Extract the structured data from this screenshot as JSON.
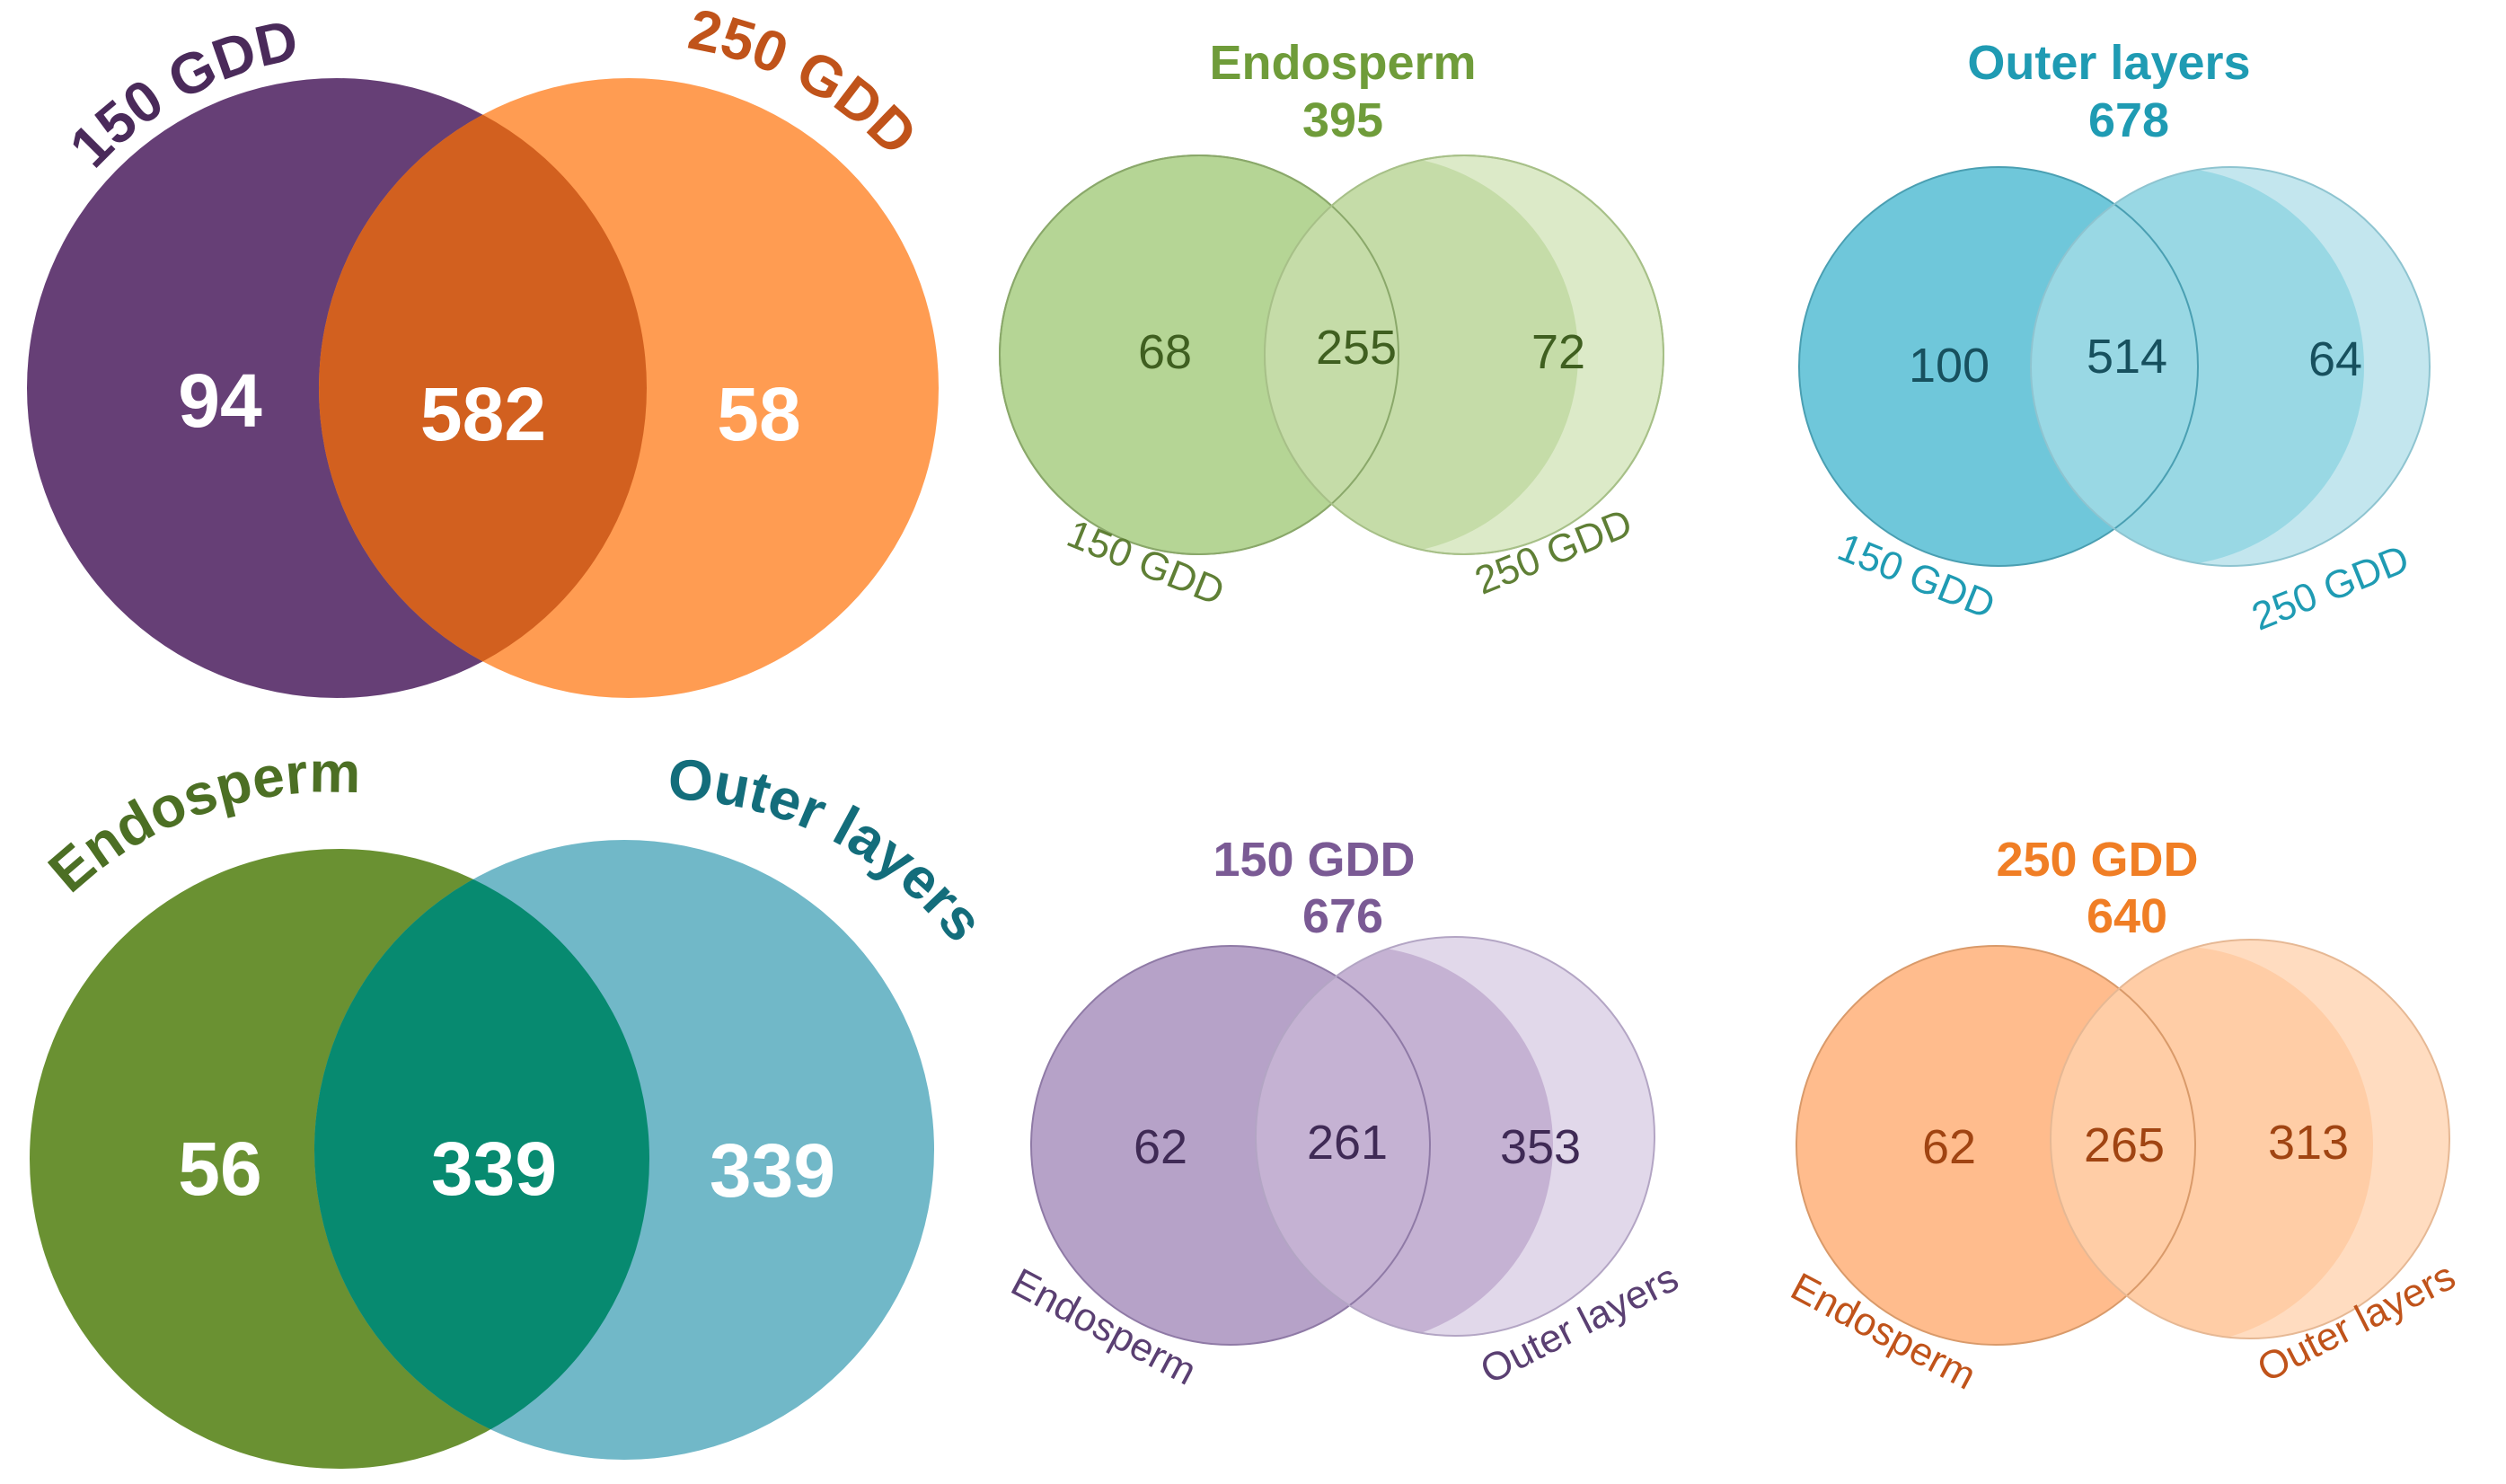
{
  "figure": {
    "panels": [
      {
        "id": "overall-gdd",
        "labels": [
          "150 GDD",
          "250 GDD"
        ],
        "counts": {
          "left_only": "94",
          "shared": "582",
          "right_only": "58"
        },
        "colors": {
          "left": "#663f76",
          "right": "#ff9c52",
          "overlap": "#d2601f",
          "label_left": "#4a2a5a",
          "label_right": "#c0531a",
          "numbers": "#ffffff"
        }
      },
      {
        "id": "endosperm",
        "title": "Endosperm",
        "total": "395",
        "labels": [
          "150 GDD",
          "250 GDD"
        ],
        "counts": {
          "left_only": "68",
          "shared": "255",
          "right_only": "72"
        },
        "colors": {
          "left": "#b5d595",
          "right": "#dceac8",
          "overlap": "#c5dca8",
          "title": "#6f9c3a",
          "labels": "#5f7f35",
          "numbers": "#3f5f20"
        }
      },
      {
        "id": "outer-layers",
        "title": "Outer layers",
        "total": "678",
        "labels": [
          "150 GDD",
          "250 GDD"
        ],
        "counts": {
          "left_only": "100",
          "shared": "514",
          "right_only": "64"
        },
        "colors": {
          "left": "#6fc7da",
          "right": "#c3e6ee",
          "overlap": "#99d8e4",
          "title": "#1f9bb3",
          "labels": "#1f9bb3",
          "numbers": "#17505e"
        }
      },
      {
        "id": "overall-tissue",
        "labels": [
          "Endosperm",
          "Outer layers"
        ],
        "counts": {
          "left_only": "56",
          "shared": "339",
          "right_only": "339"
        },
        "colors": {
          "left": "#6a9132",
          "right": "#71b8c8",
          "overlap": "#078a70",
          "label_left": "#4c6f24",
          "label_right": "#136d7b",
          "numbers": "#ffffff"
        }
      },
      {
        "id": "gdd150",
        "title": "150 GDD",
        "total": "676",
        "labels": [
          "Endosperm",
          "Outer layers"
        ],
        "counts": {
          "left_only": "62",
          "shared": "261",
          "right_only": "353"
        },
        "colors": {
          "left": "#b6a2c8",
          "right": "#e1d8ea",
          "overlap": "#c5b2d3",
          "title": "#7a5a94",
          "labels": "#5a3f72",
          "numbers": "#3f2a55"
        }
      },
      {
        "id": "gdd250",
        "title": "250 GDD",
        "total": "640",
        "labels": [
          "Endosperm",
          "Outer layers"
        ],
        "counts": {
          "left_only": "62",
          "shared": "265",
          "right_only": "313"
        },
        "colors": {
          "left": "#ffbc8d",
          "right": "#ffdcc0",
          "overlap": "#ffcda6",
          "title": "#f07e25",
          "labels": "#c0531a",
          "numbers": "#a04412"
        }
      }
    ]
  }
}
